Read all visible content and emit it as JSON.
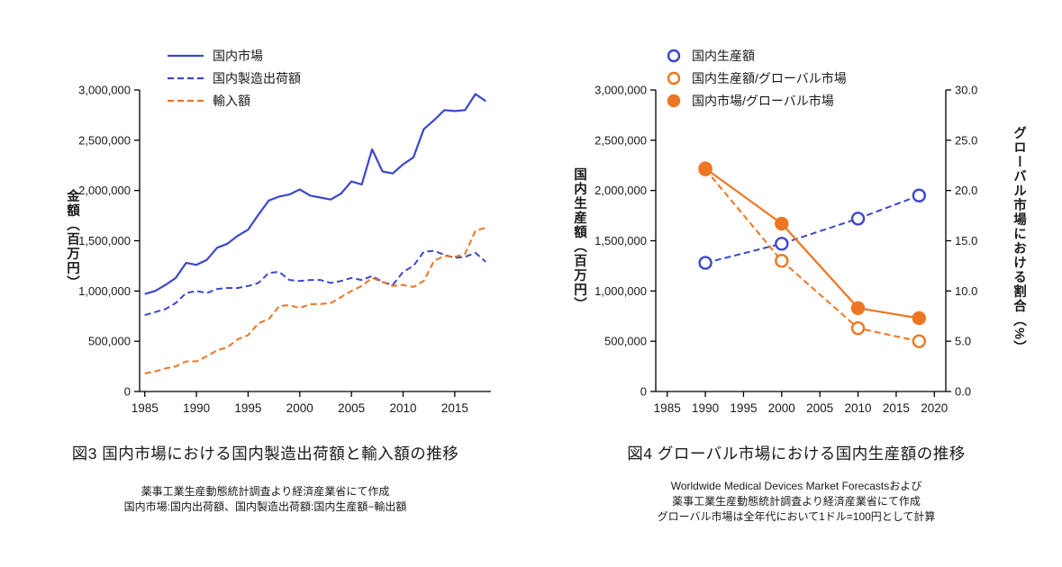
{
  "colors": {
    "blue": "#3c47cc",
    "orange": "#ed7622",
    "axis": "#000000",
    "text": "#1a1a1a"
  },
  "chart_data": [
    {
      "id": "fig3",
      "type": "line",
      "title": "図3 国内市場における国内製造出荷額と輸入額の推移",
      "notes": [
        "薬事工業生産動態統計調査より経済産業省にて作成",
        "国内市場:国内出荷額、国内製造出荷額:国内生産額−輸出額"
      ],
      "ylabel": "金額（百万円）",
      "xlim": [
        1984.5,
        2018.5
      ],
      "ylim": [
        0,
        3000000
      ],
      "xticks": [
        1985,
        1990,
        1995,
        2000,
        2005,
        2010,
        2015
      ],
      "yticks": [
        0,
        500000,
        1000000,
        1500000,
        2000000,
        2500000,
        3000000
      ],
      "legend_position": "top-left",
      "grid": false,
      "x": [
        1985,
        1986,
        1987,
        1988,
        1989,
        1990,
        1991,
        1992,
        1993,
        1994,
        1995,
        1996,
        1997,
        1998,
        1999,
        2000,
        2001,
        2002,
        2003,
        2004,
        2005,
        2006,
        2007,
        2008,
        2009,
        2010,
        2011,
        2012,
        2013,
        2014,
        2015,
        2016,
        2017,
        2018
      ],
      "series": [
        {
          "name": "国内市場",
          "color": "blue",
          "style": "solid",
          "values": [
            970000,
            1000000,
            1060000,
            1130000,
            1280000,
            1260000,
            1310000,
            1430000,
            1470000,
            1550000,
            1610000,
            1760000,
            1900000,
            1940000,
            1960000,
            2010000,
            1950000,
            1930000,
            1910000,
            1970000,
            2090000,
            2060000,
            2410000,
            2190000,
            2170000,
            2260000,
            2330000,
            2610000,
            2700000,
            2800000,
            2790000,
            2800000,
            2960000,
            2890000
          ]
        },
        {
          "name": "国内製造出荷額",
          "color": "blue",
          "style": "dashed",
          "values": [
            760000,
            790000,
            820000,
            880000,
            980000,
            1000000,
            980000,
            1020000,
            1030000,
            1030000,
            1050000,
            1080000,
            1180000,
            1190000,
            1110000,
            1100000,
            1110000,
            1110000,
            1080000,
            1100000,
            1130000,
            1110000,
            1150000,
            1090000,
            1060000,
            1190000,
            1250000,
            1390000,
            1400000,
            1360000,
            1330000,
            1340000,
            1380000,
            1290000
          ]
        },
        {
          "name": "輸入額",
          "color": "orange",
          "style": "dashed",
          "values": [
            180000,
            200000,
            230000,
            250000,
            300000,
            300000,
            350000,
            410000,
            440000,
            520000,
            560000,
            680000,
            720000,
            850000,
            860000,
            830000,
            870000,
            870000,
            880000,
            940000,
            1000000,
            1050000,
            1130000,
            1090000,
            1050000,
            1060000,
            1040000,
            1100000,
            1300000,
            1350000,
            1340000,
            1370000,
            1600000,
            1630000
          ]
        }
      ]
    },
    {
      "id": "fig4",
      "type": "line",
      "title": "図4 グローバル市場における国内生産額の推移",
      "notes": [
        "Worldwide Medical Devices Market Forecastsおよび",
        "薬事工業生産動態統計調査より経済産業省にて作成",
        "グローバル市場は全年代において1ドル=100円として計算"
      ],
      "ylabel": "国内生産額（百万円）",
      "ylabel_right": "グローバル市場における割合（%）",
      "xlim": [
        1983.5,
        2021.5
      ],
      "ylim": [
        0,
        3000000
      ],
      "ylim_right": [
        0,
        30
      ],
      "right_axis": true,
      "xticks": [
        1985,
        1990,
        1995,
        2000,
        2005,
        2010,
        2015,
        2020
      ],
      "yticks": [
        0,
        500000,
        1000000,
        1500000,
        2000000,
        2500000,
        3000000
      ],
      "yticks_right": [
        0,
        5,
        10,
        15,
        20,
        25,
        30
      ],
      "legend_position": "top-center",
      "grid": false,
      "x": [
        1990,
        2000,
        2010,
        2018
      ],
      "series": [
        {
          "name": "国内生産額",
          "color": "blue",
          "style": "dashed",
          "marker": "open",
          "axis": "left",
          "values": [
            1280000,
            1470000,
            1720000,
            1950000
          ]
        },
        {
          "name": "国内生産額/グローバル市場",
          "color": "orange",
          "style": "dashed",
          "marker": "open",
          "axis": "right",
          "values": [
            22.1,
            13.0,
            6.3,
            5.0
          ]
        },
        {
          "name": "国内市場/グローバル市場",
          "color": "orange",
          "style": "solid",
          "marker": "filled",
          "axis": "right",
          "values": [
            22.2,
            16.7,
            8.3,
            7.3
          ]
        }
      ]
    }
  ]
}
